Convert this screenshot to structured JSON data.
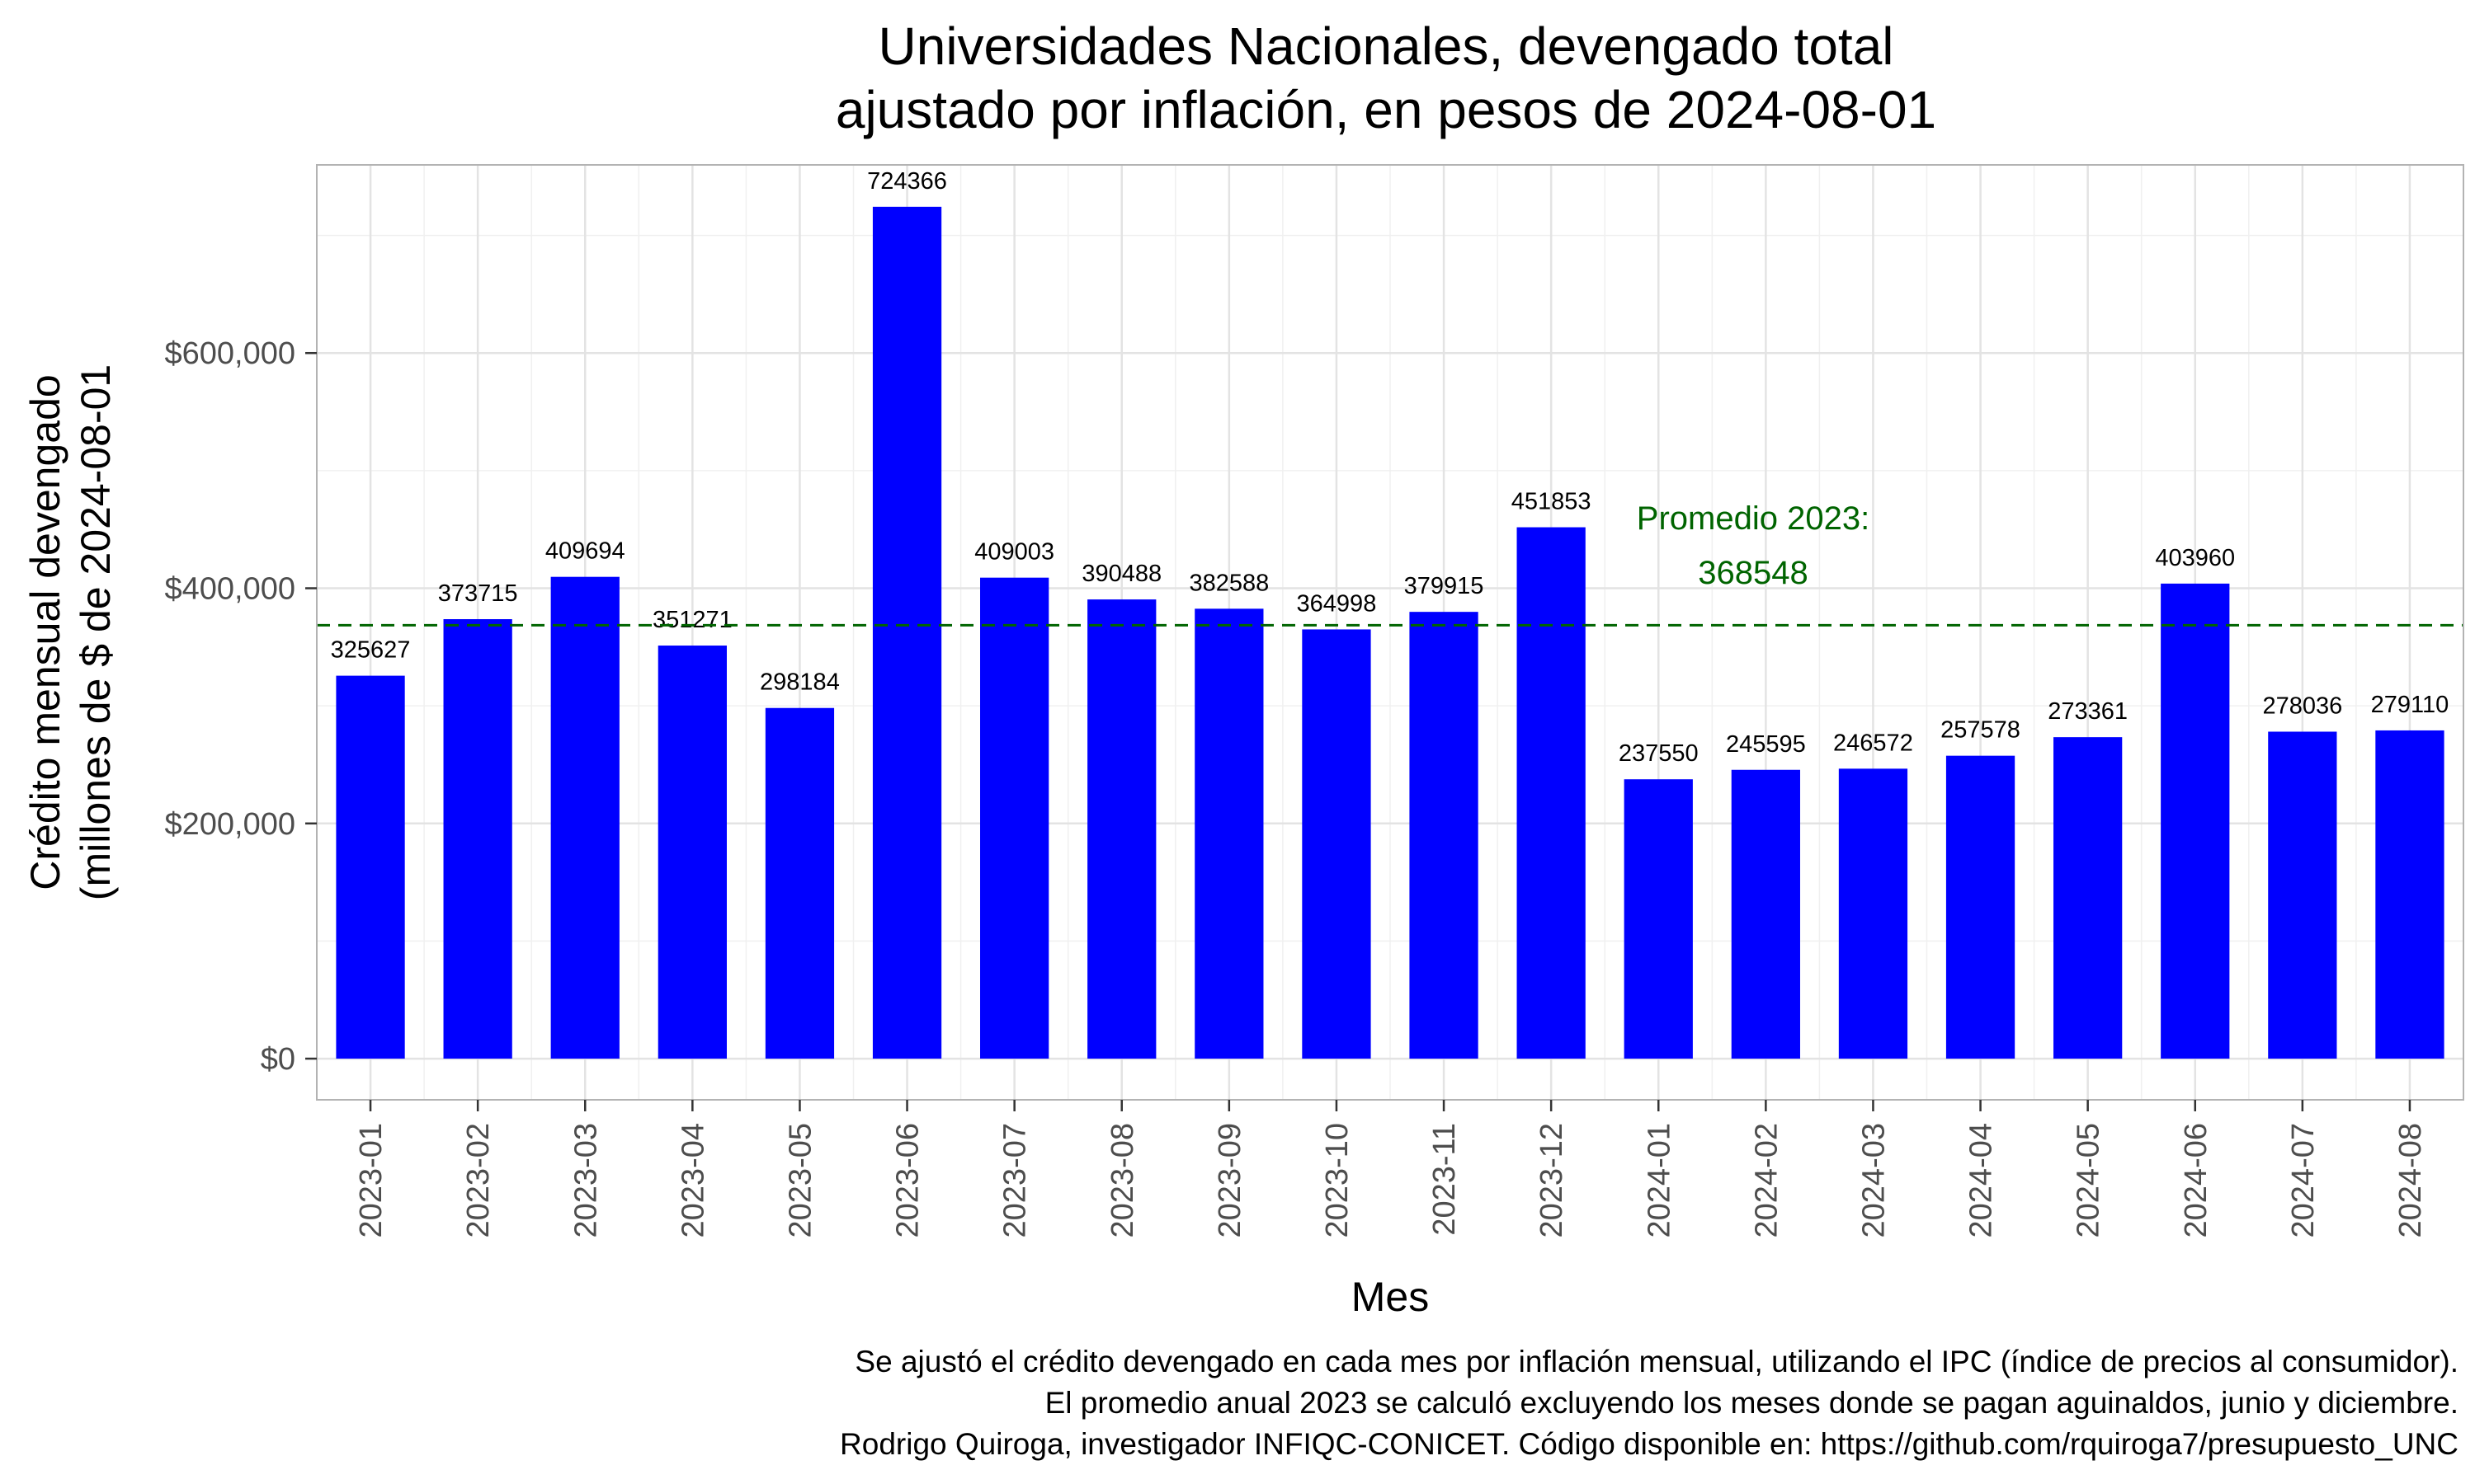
{
  "chart_data": {
    "type": "bar",
    "title": [
      "Universidades Nacionales, devengado total",
      "ajustado por inflación, en pesos de 2024-08-01"
    ],
    "xlabel": "Mes",
    "ylabel": [
      "Crédito mensual devengado",
      "(millones de $ de 2024-08-01"
    ],
    "categories": [
      "2023-01",
      "2023-02",
      "2023-03",
      "2023-04",
      "2023-05",
      "2023-06",
      "2023-07",
      "2023-08",
      "2023-09",
      "2023-10",
      "2023-11",
      "2023-12",
      "2024-01",
      "2024-02",
      "2024-03",
      "2024-04",
      "2024-05",
      "2024-06",
      "2024-07",
      "2024-08"
    ],
    "values": [
      325627,
      373715,
      409694,
      351271,
      298184,
      724366,
      409003,
      390488,
      382588,
      364998,
      379915,
      451853,
      237550,
      245595,
      246572,
      257578,
      273361,
      403960,
      278036,
      279110
    ],
    "ylim": [
      -35000,
      760000
    ],
    "yticks": [
      0,
      200000,
      400000,
      600000
    ],
    "ytick_labels": [
      "$0",
      "$200,000",
      "$400,000",
      "$600,000"
    ],
    "bar_color": "#0000ff",
    "grid": true,
    "reference_line": {
      "value": 368548,
      "style": "dashed",
      "color": "#006400",
      "label_line1": "Promedio 2023:",
      "label_line2": "368548"
    },
    "caption": [
      "Se ajustó el crédito devengado en cada mes por inflación mensual, utilizando el IPC (índice de precios al consumidor).",
      "El promedio anual 2023 se calculó excluyendo los meses donde se pagan aguinaldos, junio y diciembre.",
      "Rodrigo Quiroga, investigador INFIQC-CONICET. Código disponible en: https://github.com/rquiroga7/presupuesto_UNC"
    ]
  }
}
